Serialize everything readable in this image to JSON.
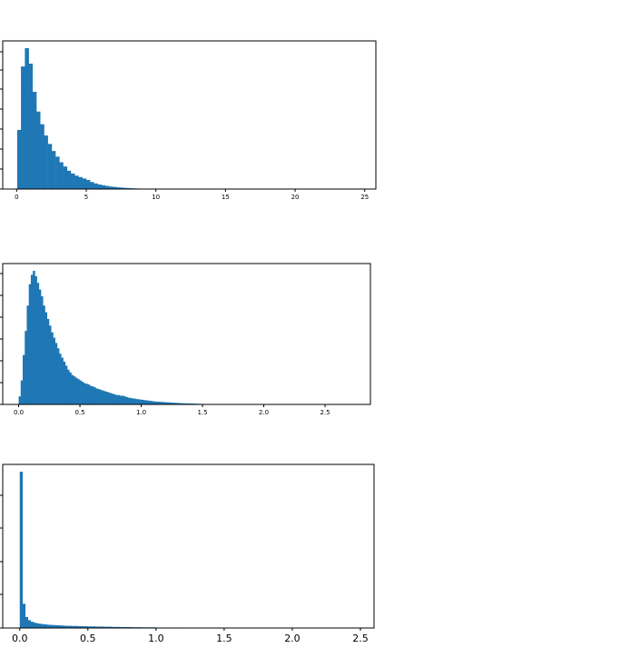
{
  "chart_data": [
    {
      "type": "bar",
      "color": "#1f77b4",
      "grid": false,
      "legend": "none",
      "title": "",
      "xlabel": "",
      "ylabel": "",
      "xlim": [
        -1.0,
        25.8
      ],
      "xticks": [
        0,
        5,
        10,
        15,
        20,
        25
      ],
      "xtick_labels": [
        "0",
        "5",
        "10",
        "15",
        "20",
        "25"
      ],
      "ylim": [
        0,
        1.0
      ],
      "bin_width": 0.275,
      "x": [
        0.04,
        0.31,
        0.59,
        0.86,
        1.14,
        1.41,
        1.69,
        1.96,
        2.24,
        2.51,
        2.79,
        3.06,
        3.34,
        3.61,
        3.89,
        4.16,
        4.44,
        4.71,
        4.99,
        5.26,
        5.54,
        5.81,
        6.09,
        6.36,
        6.64,
        6.91,
        7.19,
        7.46,
        7.74,
        8.01,
        8.29,
        8.56,
        8.84,
        9.11,
        9.39,
        9.66
      ],
      "values": [
        0.42,
        0.87,
        1.0,
        0.89,
        0.69,
        0.55,
        0.46,
        0.38,
        0.32,
        0.27,
        0.23,
        0.19,
        0.16,
        0.13,
        0.11,
        0.095,
        0.085,
        0.075,
        0.065,
        0.05,
        0.04,
        0.032,
        0.027,
        0.022,
        0.018,
        0.015,
        0.012,
        0.01,
        0.008,
        0.006,
        0.005,
        0.004,
        0.003,
        0.002,
        0.0015,
        0.001
      ]
    },
    {
      "type": "bar",
      "color": "#1f77b4",
      "grid": false,
      "legend": "none",
      "title": "",
      "xlabel": "",
      "ylabel": "",
      "xlim": [
        -0.13,
        2.87
      ],
      "xticks": [
        0.0,
        0.5,
        1.0,
        1.5,
        2.0,
        2.5
      ],
      "xtick_labels": [
        "0.0",
        "0.5",
        "1.0",
        "1.5",
        "2.0",
        "2.5"
      ],
      "ylim": [
        0,
        1.0
      ],
      "bin_width": 0.0165,
      "x": [
        0.0,
        0.0165,
        0.033,
        0.0495,
        0.066,
        0.0825,
        0.099,
        0.1155,
        0.132,
        0.1485,
        0.165,
        0.1815,
        0.198,
        0.2145,
        0.231,
        0.2475,
        0.264,
        0.2805,
        0.297,
        0.3135,
        0.33,
        0.3465,
        0.363,
        0.3795,
        0.396,
        0.4125,
        0.429,
        0.4455,
        0.462,
        0.4785,
        0.495,
        0.5115,
        0.528,
        0.5445,
        0.561,
        0.5775,
        0.594,
        0.6105,
        0.627,
        0.6435,
        0.66,
        0.6765,
        0.693,
        0.7095,
        0.726,
        0.7425,
        0.759,
        0.7755,
        0.792,
        0.8085,
        0.825,
        0.8415,
        0.858,
        0.8745,
        0.891,
        0.9075,
        0.924,
        0.9405,
        0.957,
        0.9735,
        0.99,
        1.0065,
        1.023,
        1.0395,
        1.056,
        1.0725,
        1.089,
        1.1055,
        1.122,
        1.1385,
        1.155,
        1.1715,
        1.188,
        1.2045,
        1.221,
        1.2375,
        1.254,
        1.2705,
        1.287,
        1.3035,
        1.32,
        1.3365,
        1.353,
        1.3695,
        1.386,
        1.4025,
        1.419,
        1.4355,
        1.452,
        1.4685,
        1.485,
        1.5015,
        1.518,
        1.5345,
        1.551,
        1.5675,
        1.584,
        1.6005,
        1.617,
        1.6335,
        1.65
      ],
      "values": [
        0.06,
        0.18,
        0.37,
        0.55,
        0.74,
        0.9,
        0.97,
        1.0,
        0.96,
        0.91,
        0.86,
        0.81,
        0.74,
        0.69,
        0.64,
        0.59,
        0.54,
        0.5,
        0.46,
        0.42,
        0.38,
        0.35,
        0.32,
        0.29,
        0.26,
        0.24,
        0.22,
        0.21,
        0.2,
        0.19,
        0.18,
        0.17,
        0.16,
        0.155,
        0.15,
        0.14,
        0.135,
        0.13,
        0.12,
        0.115,
        0.11,
        0.105,
        0.1,
        0.095,
        0.09,
        0.085,
        0.08,
        0.075,
        0.07,
        0.07,
        0.065,
        0.065,
        0.06,
        0.055,
        0.05,
        0.048,
        0.045,
        0.043,
        0.04,
        0.038,
        0.036,
        0.034,
        0.032,
        0.03,
        0.028,
        0.026,
        0.024,
        0.022,
        0.021,
        0.02,
        0.019,
        0.018,
        0.017,
        0.016,
        0.015,
        0.014,
        0.013,
        0.012,
        0.011,
        0.01,
        0.009,
        0.0085,
        0.008,
        0.0075,
        0.007,
        0.0065,
        0.006,
        0.0055,
        0.005,
        0.0045,
        0.004,
        0.0035,
        0.003,
        0.0028,
        0.0025,
        0.0022,
        0.002,
        0.0018,
        0.0015,
        0.0012,
        0.001
      ]
    },
    {
      "type": "bar",
      "color": "#1f77b4",
      "grid": false,
      "legend": "none",
      "title": "",
      "xlabel": "",
      "ylabel": "",
      "xlim": [
        -0.125,
        2.6
      ],
      "xticks": [
        0.0,
        0.5,
        1.0,
        1.5,
        2.0,
        2.5
      ],
      "xtick_labels": [
        "0.0",
        "0.5",
        "1.0",
        "1.5",
        "2.0",
        "2.5"
      ],
      "ylim": [
        0,
        1.0
      ],
      "bin_width": 0.02,
      "x": [
        0.0,
        0.02,
        0.04,
        0.06,
        0.08,
        0.1,
        0.12,
        0.14,
        0.16,
        0.18,
        0.2,
        0.22,
        0.24,
        0.26,
        0.28,
        0.3,
        0.32,
        0.34,
        0.36,
        0.38,
        0.4,
        0.42,
        0.44,
        0.46,
        0.48,
        0.5,
        0.52,
        0.54,
        0.56,
        0.58,
        0.6,
        0.62,
        0.64,
        0.66,
        0.68,
        0.7,
        0.72,
        0.74,
        0.76,
        0.78,
        0.8,
        0.82,
        0.84,
        0.86,
        0.88,
        0.9,
        0.92,
        0.94,
        0.96,
        0.98,
        1.0,
        1.02,
        1.04,
        1.06,
        1.08,
        1.1,
        1.12,
        1.14,
        1.16
      ],
      "values": [
        1.0,
        0.155,
        0.07,
        0.05,
        0.04,
        0.034,
        0.03,
        0.027,
        0.025,
        0.023,
        0.021,
        0.02,
        0.019,
        0.018,
        0.017,
        0.016,
        0.015,
        0.014,
        0.014,
        0.013,
        0.013,
        0.012,
        0.012,
        0.011,
        0.011,
        0.01,
        0.01,
        0.01,
        0.009,
        0.009,
        0.009,
        0.008,
        0.008,
        0.008,
        0.007,
        0.007,
        0.007,
        0.006,
        0.006,
        0.006,
        0.006,
        0.005,
        0.005,
        0.005,
        0.005,
        0.004,
        0.004,
        0.004,
        0.004,
        0.004,
        0.003,
        0.003,
        0.003,
        0.003,
        0.003,
        0.003,
        0.003,
        0.003,
        0.003
      ]
    }
  ]
}
